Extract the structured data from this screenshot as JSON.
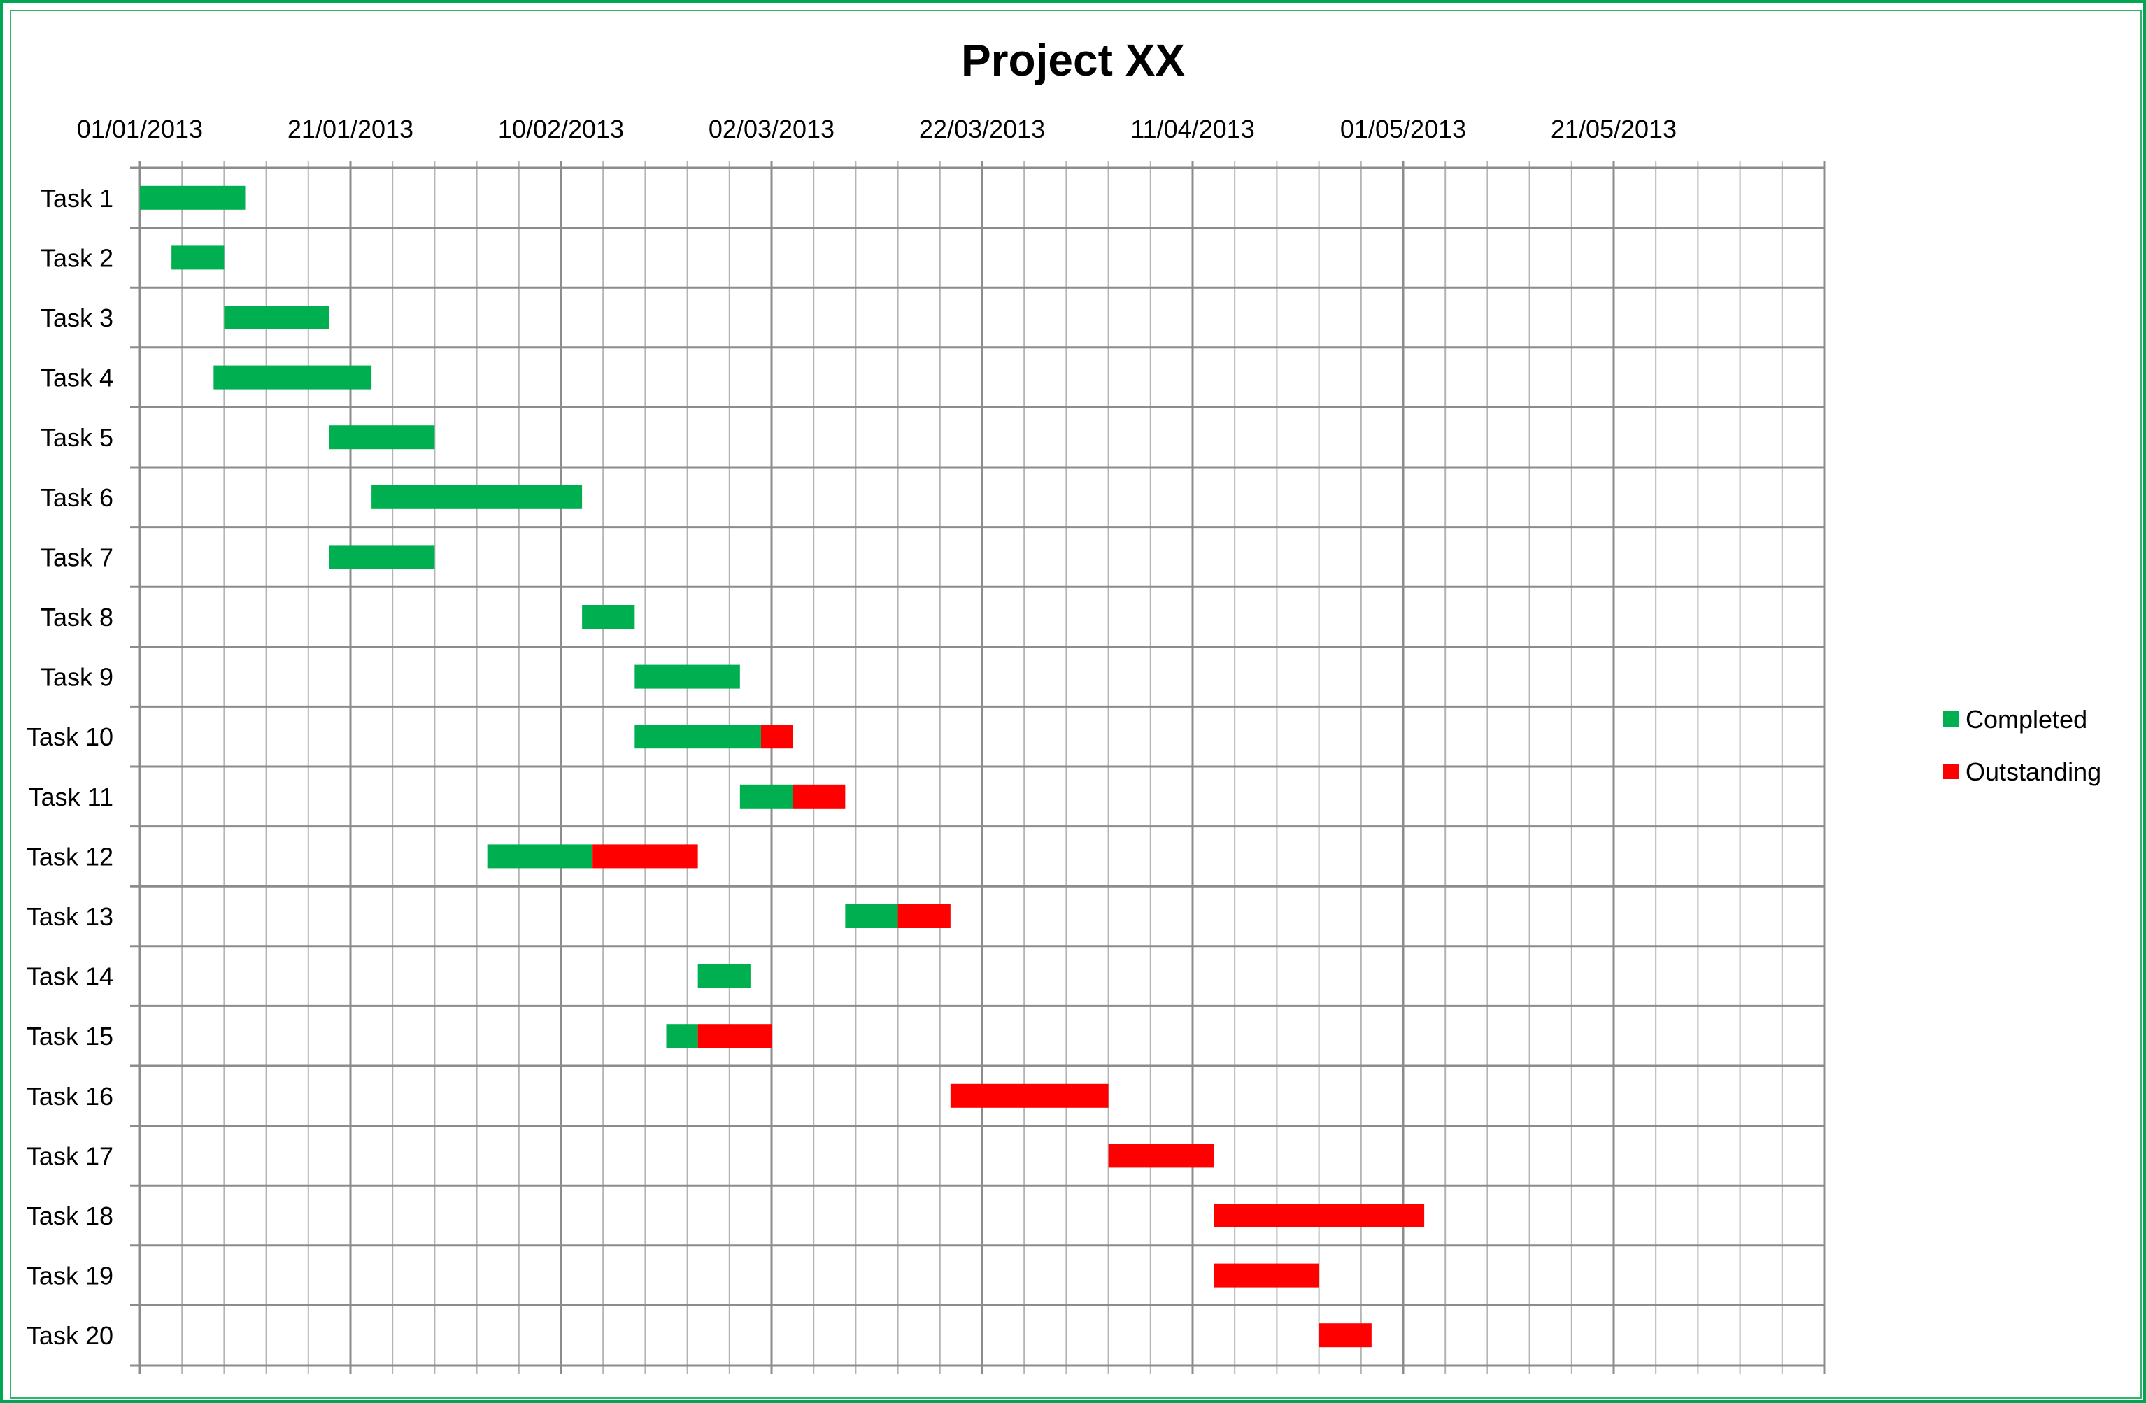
{
  "chart_data": {
    "type": "gantt",
    "title": "Project XX",
    "x_tick_labels": [
      "01/01/2013",
      "21/01/2013",
      "10/02/2013",
      "02/03/2013",
      "22/03/2013",
      "11/04/2013",
      "01/05/2013",
      "21/05/2013"
    ],
    "xlim": [
      "2013-01-01",
      "2013-06-10"
    ],
    "x_major_step_days": 20,
    "x_minor_step_days": 4,
    "grid": true,
    "legend_position": "right",
    "series": [
      {
        "name": "Completed",
        "color": "#00b050"
      },
      {
        "name": "Outstanding",
        "color": "#ff0000"
      }
    ],
    "tasks": [
      {
        "name": "Task 1",
        "start": "2013-01-01",
        "completed_days": 10,
        "outstanding_days": 0
      },
      {
        "name": "Task 2",
        "start": "2013-01-04",
        "completed_days": 5,
        "outstanding_days": 0
      },
      {
        "name": "Task 3",
        "start": "2013-01-09",
        "completed_days": 10,
        "outstanding_days": 0
      },
      {
        "name": "Task 4",
        "start": "2013-01-08",
        "completed_days": 15,
        "outstanding_days": 0
      },
      {
        "name": "Task 5",
        "start": "2013-01-19",
        "completed_days": 10,
        "outstanding_days": 0
      },
      {
        "name": "Task 6",
        "start": "2013-01-23",
        "completed_days": 20,
        "outstanding_days": 0
      },
      {
        "name": "Task 7",
        "start": "2013-01-19",
        "completed_days": 10,
        "outstanding_days": 0
      },
      {
        "name": "Task 8",
        "start": "2013-02-12",
        "completed_days": 5,
        "outstanding_days": 0
      },
      {
        "name": "Task 9",
        "start": "2013-02-17",
        "completed_days": 10,
        "outstanding_days": 0
      },
      {
        "name": "Task 10",
        "start": "2013-02-17",
        "completed_days": 12,
        "outstanding_days": 3
      },
      {
        "name": "Task 11",
        "start": "2013-02-27",
        "completed_days": 5,
        "outstanding_days": 5
      },
      {
        "name": "Task 12",
        "start": "2013-02-03",
        "completed_days": 10,
        "outstanding_days": 10
      },
      {
        "name": "Task 13",
        "start": "2013-03-09",
        "completed_days": 5,
        "outstanding_days": 5
      },
      {
        "name": "Task 14",
        "start": "2013-02-23",
        "completed_days": 5,
        "outstanding_days": 0
      },
      {
        "name": "Task 15",
        "start": "2013-02-20",
        "completed_days": 3,
        "outstanding_days": 7
      },
      {
        "name": "Task 16",
        "start": "2013-03-19",
        "completed_days": 0,
        "outstanding_days": 15
      },
      {
        "name": "Task 17",
        "start": "2013-04-03",
        "completed_days": 0,
        "outstanding_days": 10
      },
      {
        "name": "Task 18",
        "start": "2013-04-13",
        "completed_days": 0,
        "outstanding_days": 20
      },
      {
        "name": "Task 19",
        "start": "2013-04-13",
        "completed_days": 0,
        "outstanding_days": 10
      },
      {
        "name": "Task 20",
        "start": "2013-04-23",
        "completed_days": 0,
        "outstanding_days": 5
      }
    ]
  }
}
